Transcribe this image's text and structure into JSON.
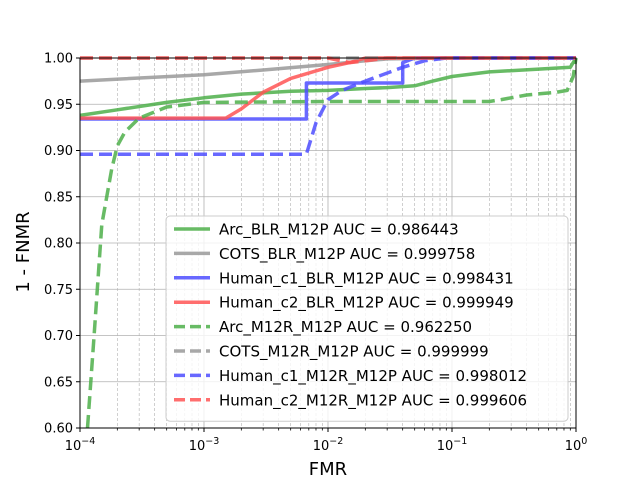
{
  "chart_data": {
    "type": "line",
    "xlabel": "FMR",
    "ylabel": "1 - FNMR",
    "xscale": "log",
    "xlim": [
      0.0001,
      1
    ],
    "ylim": [
      0.6,
      1.0
    ],
    "x_tick_values": [
      0.0001,
      0.001,
      0.01,
      0.1,
      1
    ],
    "x_tick_labels": [
      {
        "base": "10",
        "exp": "−4"
      },
      {
        "base": "10",
        "exp": "−3"
      },
      {
        "base": "10",
        "exp": "−2"
      },
      {
        "base": "10",
        "exp": "−1"
      },
      {
        "base": "10",
        "exp": "0"
      }
    ],
    "y_ticks": [
      0.6,
      0.65,
      0.7,
      0.75,
      0.8,
      0.85,
      0.9,
      0.95,
      1.0
    ],
    "y_tick_labels": [
      "0.60",
      "0.65",
      "0.70",
      "0.75",
      "0.80",
      "0.85",
      "0.90",
      "0.95",
      "1.00"
    ],
    "grid": true,
    "legend_position": "lower-right",
    "series": [
      {
        "name": "Arc_BLR_M12P AUC = 0.986443",
        "color": "#4daf4a",
        "dash": "solid",
        "x": [
          0.0001,
          0.0002,
          0.0005,
          0.001,
          0.002,
          0.005,
          0.01,
          0.02,
          0.03,
          0.05,
          0.07,
          0.1,
          0.2,
          0.5,
          0.9,
          1.0
        ],
        "y": [
          0.938,
          0.944,
          0.952,
          0.957,
          0.961,
          0.964,
          0.965,
          0.967,
          0.968,
          0.97,
          0.975,
          0.98,
          0.985,
          0.988,
          0.99,
          1.0
        ]
      },
      {
        "name": "COTS_BLR_M12P AUC = 0.999758",
        "color": "#999999",
        "dash": "solid",
        "x": [
          0.0001,
          0.001,
          0.003,
          0.01,
          0.02,
          0.03,
          0.1,
          1.0
        ],
        "y": [
          0.975,
          0.982,
          0.987,
          0.993,
          0.997,
          0.999,
          1.0,
          1.0
        ]
      },
      {
        "name": "Human_c1_BLR_M12P AUC = 0.998431",
        "color": "#4d4dff",
        "dash": "solid",
        "x": [
          0.0001,
          0.0067,
          0.0067,
          0.04,
          0.04,
          0.05,
          1.0
        ],
        "y": [
          0.934,
          0.934,
          0.973,
          0.973,
          0.995,
          1.0,
          1.0
        ]
      },
      {
        "name": "Human_c2_BLR_M12P AUC = 0.999949",
        "color": "#ff5555",
        "dash": "solid",
        "x": [
          0.0001,
          0.0015,
          0.002,
          0.003,
          0.005,
          0.01,
          0.015,
          0.02,
          1.0
        ],
        "y": [
          0.935,
          0.935,
          0.945,
          0.963,
          0.978,
          0.99,
          0.995,
          1.0,
          1.0
        ]
      },
      {
        "name": "Arc_M12R_M12P AUC = 0.962250",
        "color": "#4daf4a",
        "dash": "dashed",
        "x": [
          0.000115,
          0.00013,
          0.00015,
          0.00018,
          0.0002,
          0.00023,
          0.0003,
          0.0005,
          0.001,
          0.01,
          0.2,
          0.25,
          0.4,
          0.7,
          0.85,
          0.95,
          1.0
        ],
        "y": [
          0.6,
          0.7,
          0.82,
          0.88,
          0.905,
          0.92,
          0.935,
          0.947,
          0.952,
          0.953,
          0.953,
          0.955,
          0.96,
          0.963,
          0.965,
          0.98,
          1.0
        ]
      },
      {
        "name": "COTS_M12R_M12P AUC = 0.999999",
        "color": "#999999",
        "dash": "dashed",
        "x": [
          0.0001,
          1.0
        ],
        "y": [
          0.9999,
          1.0
        ]
      },
      {
        "name": "Human_c1_M12R_M12P AUC = 0.998012",
        "color": "#4d4dff",
        "dash": "dashed",
        "x": [
          0.0001,
          0.0067,
          0.008,
          0.01,
          0.013,
          0.02,
          0.04,
          0.06,
          0.09,
          1.0
        ],
        "y": [
          0.896,
          0.896,
          0.93,
          0.955,
          0.965,
          0.975,
          0.99,
          0.997,
          1.0,
          1.0
        ]
      },
      {
        "name": "Human_c2_M12R_M12P AUC = 0.999606",
        "color": "#ff5555",
        "dash": "dashed",
        "x": [
          0.0001,
          0.01,
          0.015,
          0.02,
          0.03,
          1.0
        ],
        "y": [
          1.0,
          1.0,
          0.995,
          0.997,
          1.0,
          1.0
        ]
      }
    ]
  }
}
